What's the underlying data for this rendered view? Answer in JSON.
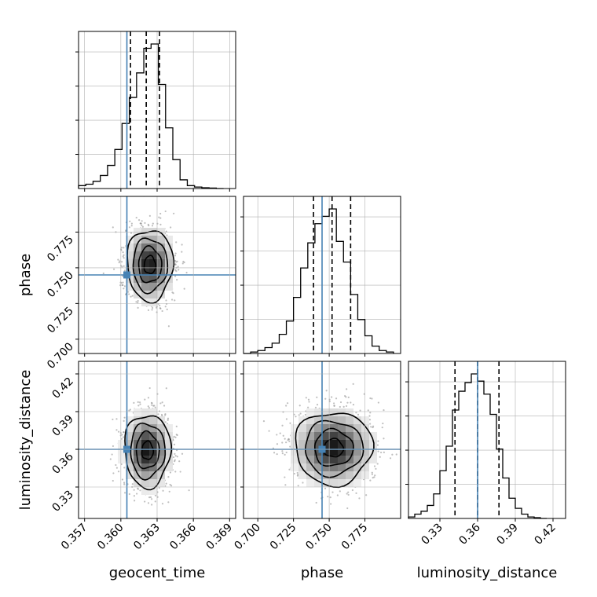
{
  "chart_data": {
    "type": "corner",
    "parameters": [
      "geocent_time",
      "phase",
      "luminosity_distance"
    ],
    "axis_labels": {
      "x": [
        "geocent_time",
        "phase",
        "luminosity_distance"
      ],
      "y": [
        "",
        "phase",
        "luminosity_distance"
      ]
    },
    "ranges": {
      "geocent_time": [
        0.3565,
        0.3695
      ],
      "phase": [
        0.69,
        0.8
      ],
      "luminosity_distance": [
        0.305,
        0.43
      ]
    },
    "ticks": {
      "geocent_time": {
        "values": [
          0.357,
          0.36,
          0.363,
          0.366,
          0.369
        ],
        "labels": [
          "0.357",
          "0.360",
          "0.363",
          "0.366",
          "0.369"
        ]
      },
      "phase": {
        "values": [
          0.7,
          0.725,
          0.75,
          0.775
        ],
        "labels": [
          "0.700",
          "0.725",
          "0.750",
          "0.775"
        ]
      },
      "luminosity_distance": {
        "values": [
          0.33,
          0.36,
          0.39,
          0.42
        ],
        "labels": [
          "0.33",
          "0.36",
          "0.39",
          "0.42"
        ]
      }
    },
    "truths": {
      "geocent_time": 0.3605,
      "phase": 0.745,
      "luminosity_distance": 0.36
    },
    "quantiles": {
      "geocent_time": [
        0.3608,
        0.3621,
        0.3632
      ],
      "phase": [
        0.739,
        0.752,
        0.765
      ],
      "luminosity_distance": [
        0.342,
        0.36,
        0.377
      ]
    },
    "histograms": {
      "geocent_time": {
        "bin_edges": [
          0.3565,
          0.3571,
          0.3577,
          0.3583,
          0.3589,
          0.3595,
          0.3601,
          0.3607,
          0.3613,
          0.3619,
          0.3625,
          0.3631,
          0.3637,
          0.3643,
          0.3649,
          0.3655,
          0.3661,
          0.3667,
          0.3673,
          0.3679,
          0.3685
        ],
        "counts": [
          0.02,
          0.03,
          0.05,
          0.09,
          0.16,
          0.27,
          0.45,
          0.63,
          0.8,
          0.97,
          1.0,
          0.72,
          0.42,
          0.2,
          0.06,
          0.02,
          0.01,
          0.005,
          0.003,
          0.0
        ]
      },
      "phase": {
        "bin_edges": [
          0.69,
          0.695,
          0.7,
          0.705,
          0.71,
          0.715,
          0.72,
          0.725,
          0.73,
          0.735,
          0.74,
          0.745,
          0.75,
          0.755,
          0.76,
          0.765,
          0.77,
          0.775,
          0.78,
          0.785,
          0.79,
          0.795
        ],
        "counts": [
          0.0,
          0.01,
          0.02,
          0.04,
          0.07,
          0.13,
          0.22,
          0.38,
          0.58,
          0.75,
          0.88,
          0.93,
          0.98,
          0.76,
          0.62,
          0.4,
          0.23,
          0.12,
          0.05,
          0.02,
          0.01
        ]
      },
      "luminosity_distance": {
        "bin_edges": [
          0.305,
          0.31,
          0.315,
          0.32,
          0.325,
          0.33,
          0.335,
          0.34,
          0.345,
          0.35,
          0.355,
          0.36,
          0.365,
          0.37,
          0.375,
          0.38,
          0.385,
          0.39,
          0.395,
          0.4,
          0.405,
          0.41,
          0.415
        ],
        "counts": [
          0.01,
          0.03,
          0.05,
          0.09,
          0.17,
          0.33,
          0.5,
          0.75,
          0.88,
          0.94,
          1.0,
          0.95,
          0.86,
          0.72,
          0.48,
          0.28,
          0.14,
          0.07,
          0.03,
          0.01,
          0.005,
          0.0
        ]
      }
    },
    "pairs": [
      {
        "x": "geocent_time",
        "y": "phase",
        "center": [
          0.3624,
          0.752
        ],
        "sigma": [
          0.00095,
          0.0125
        ],
        "contour_levels": [
          0.5,
          1.0,
          1.5,
          2.0
        ]
      },
      {
        "x": "geocent_time",
        "y": "luminosity_distance",
        "center": [
          0.3622,
          0.359
        ],
        "sigma": [
          0.00095,
          0.0145
        ],
        "contour_levels": [
          0.5,
          1.0,
          1.5,
          2.0
        ]
      },
      {
        "x": "phase",
        "y": "luminosity_distance",
        "center": [
          0.753,
          0.361
        ],
        "sigma": [
          0.0135,
          0.0145
        ],
        "contour_levels": [
          0.5,
          1.0,
          1.5,
          2.0
        ]
      }
    ],
    "colors": {
      "truth": "#4682b4",
      "hist": "#000000",
      "grid": "#b0b0b0"
    }
  }
}
